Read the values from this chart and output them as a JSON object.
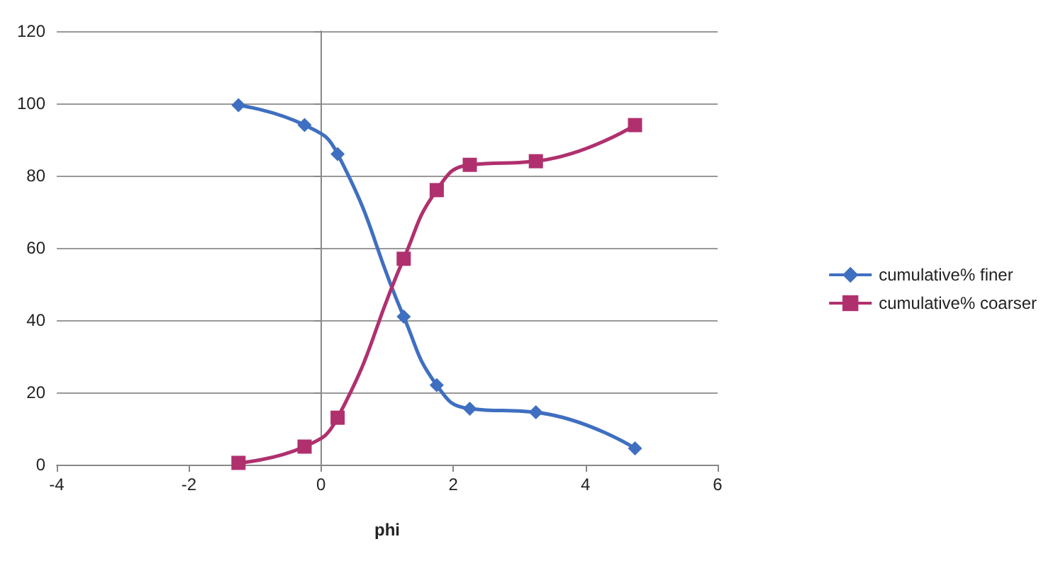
{
  "chart_data": {
    "type": "line",
    "xlabel": "phi",
    "xlim": [
      -4,
      6
    ],
    "xticks": [
      -4,
      -2,
      0,
      2,
      4,
      6
    ],
    "ylim": [
      0,
      120
    ],
    "yticks": [
      0,
      20,
      40,
      60,
      80,
      100,
      120
    ],
    "grid": "y",
    "legend": "right",
    "series": [
      {
        "name": "cumulative% finer",
        "color": "#3f6fc0",
        "marker": "diamond",
        "x": [
          -1.25,
          -0.25,
          0.25,
          1.25,
          1.75,
          2.25,
          3.25,
          4.75
        ],
        "values": [
          99.5,
          94,
          86,
          41,
          22,
          15.5,
          14.5,
          4.5
        ]
      },
      {
        "name": "cumulative% coarser",
        "color": "#b0306e",
        "marker": "square",
        "x": [
          -1.25,
          -0.25,
          0.25,
          1.25,
          1.75,
          2.25,
          3.25,
          4.75
        ],
        "values": [
          0.5,
          5,
          13,
          57,
          76,
          83,
          84,
          94
        ]
      }
    ]
  }
}
